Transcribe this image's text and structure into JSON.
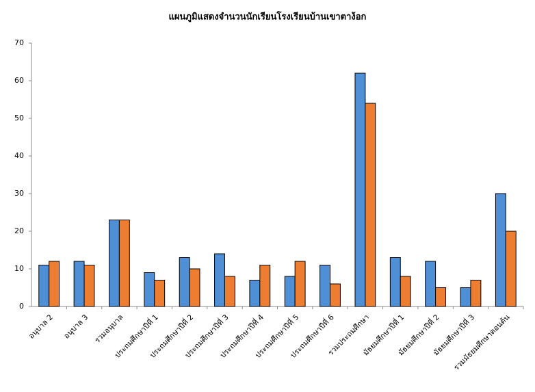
{
  "chart_data": {
    "type": "bar",
    "title": "แผนภูมิแสดงจำนวนนักเรียนโรงเรียนบ้านเขาตาง้อก",
    "categories": [
      "อนุบาล 2",
      "อนุบาล 3",
      "รวมอนุบาล",
      "ประถมศึกษาปีที่ 1",
      "ประถมศึกษาปีที่ 2",
      "ประถมศึกษาปีที่ 3",
      "ประถมศึกษาปีที่ 4",
      "ประถมศึกษาปีที่ 5",
      "ประถมศึกษาปีที่ 6",
      "รวมประถมศึกษา",
      "มัธยมศึกษาปีที่ 1",
      "มัธยมศึกษาปีที่ 2",
      "มัธยมศึกษาปีที่ 3",
      "รวมมัธยมศึกษาตอนต้น"
    ],
    "series": [
      {
        "color": "#4f8fd6",
        "values": [
          11,
          12,
          23,
          9,
          13,
          14,
          7,
          8,
          11,
          62,
          13,
          12,
          5,
          30
        ]
      },
      {
        "color": "#ed7d31",
        "values": [
          12,
          11,
          23,
          7,
          10,
          8,
          11,
          12,
          6,
          54,
          8,
          5,
          7,
          20
        ]
      }
    ],
    "ylim": [
      0,
      70
    ],
    "yticks": [
      0,
      10,
      20,
      30,
      40,
      50,
      60,
      70
    ],
    "grid": false
  }
}
